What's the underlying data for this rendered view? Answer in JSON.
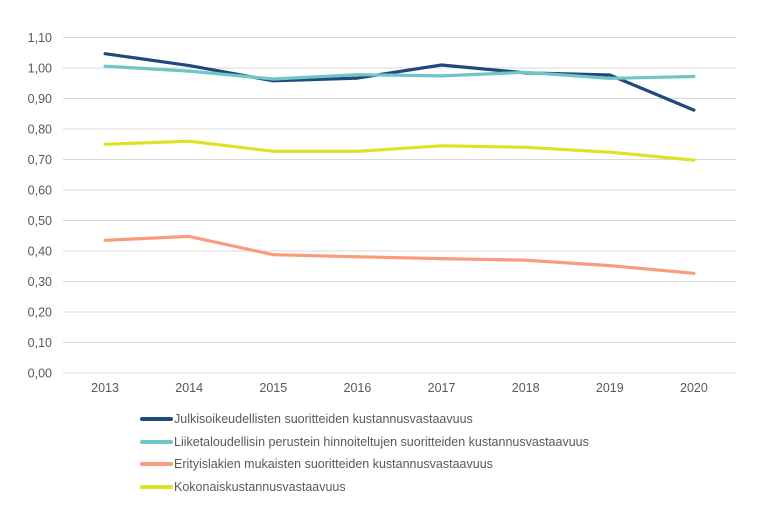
{
  "chart_data": {
    "type": "line",
    "title": "",
    "xlabel": "",
    "ylabel": "",
    "categories": [
      "2013",
      "2014",
      "2015",
      "2016",
      "2017",
      "2018",
      "2019",
      "2020"
    ],
    "ylim": [
      0,
      1.1
    ],
    "yticks": [
      "0,00",
      "0,10",
      "0,20",
      "0,30",
      "0,40",
      "0,50",
      "0,60",
      "0,70",
      "0,80",
      "0,90",
      "1,00",
      "1,10"
    ],
    "ytick_values": [
      0,
      0.1,
      0.2,
      0.3,
      0.4,
      0.5,
      0.6,
      0.7,
      0.8,
      0.9,
      1.0,
      1.1
    ],
    "grid": true,
    "legend_position": "bottom",
    "series": [
      {
        "name": "Julkisoikeudellisten suoritteiden kustannusvastaavuus",
        "color": "#1f497d",
        "values": [
          1.047,
          1.008,
          0.958,
          0.967,
          1.01,
          0.984,
          0.977,
          0.862
        ]
      },
      {
        "name": "Liiketaloudellisin perustein hinnoiteltujen suoritteiden kustannusvastaavuus",
        "color": "#6ec7c4",
        "values": [
          1.006,
          0.99,
          0.964,
          0.978,
          0.974,
          0.986,
          0.966,
          0.972
        ]
      },
      {
        "name": "Erityislakien mukaisten suoritteiden kustannusvastaavuus",
        "color": "#fa9b7c",
        "values": [
          0.435,
          0.448,
          0.388,
          0.381,
          0.375,
          0.37,
          0.352,
          0.327
        ]
      },
      {
        "name": "Kokonaiskustannusvastaavuus",
        "color": "#e0e024",
        "values": [
          0.75,
          0.76,
          0.727,
          0.727,
          0.745,
          0.74,
          0.724,
          0.698
        ]
      }
    ]
  }
}
